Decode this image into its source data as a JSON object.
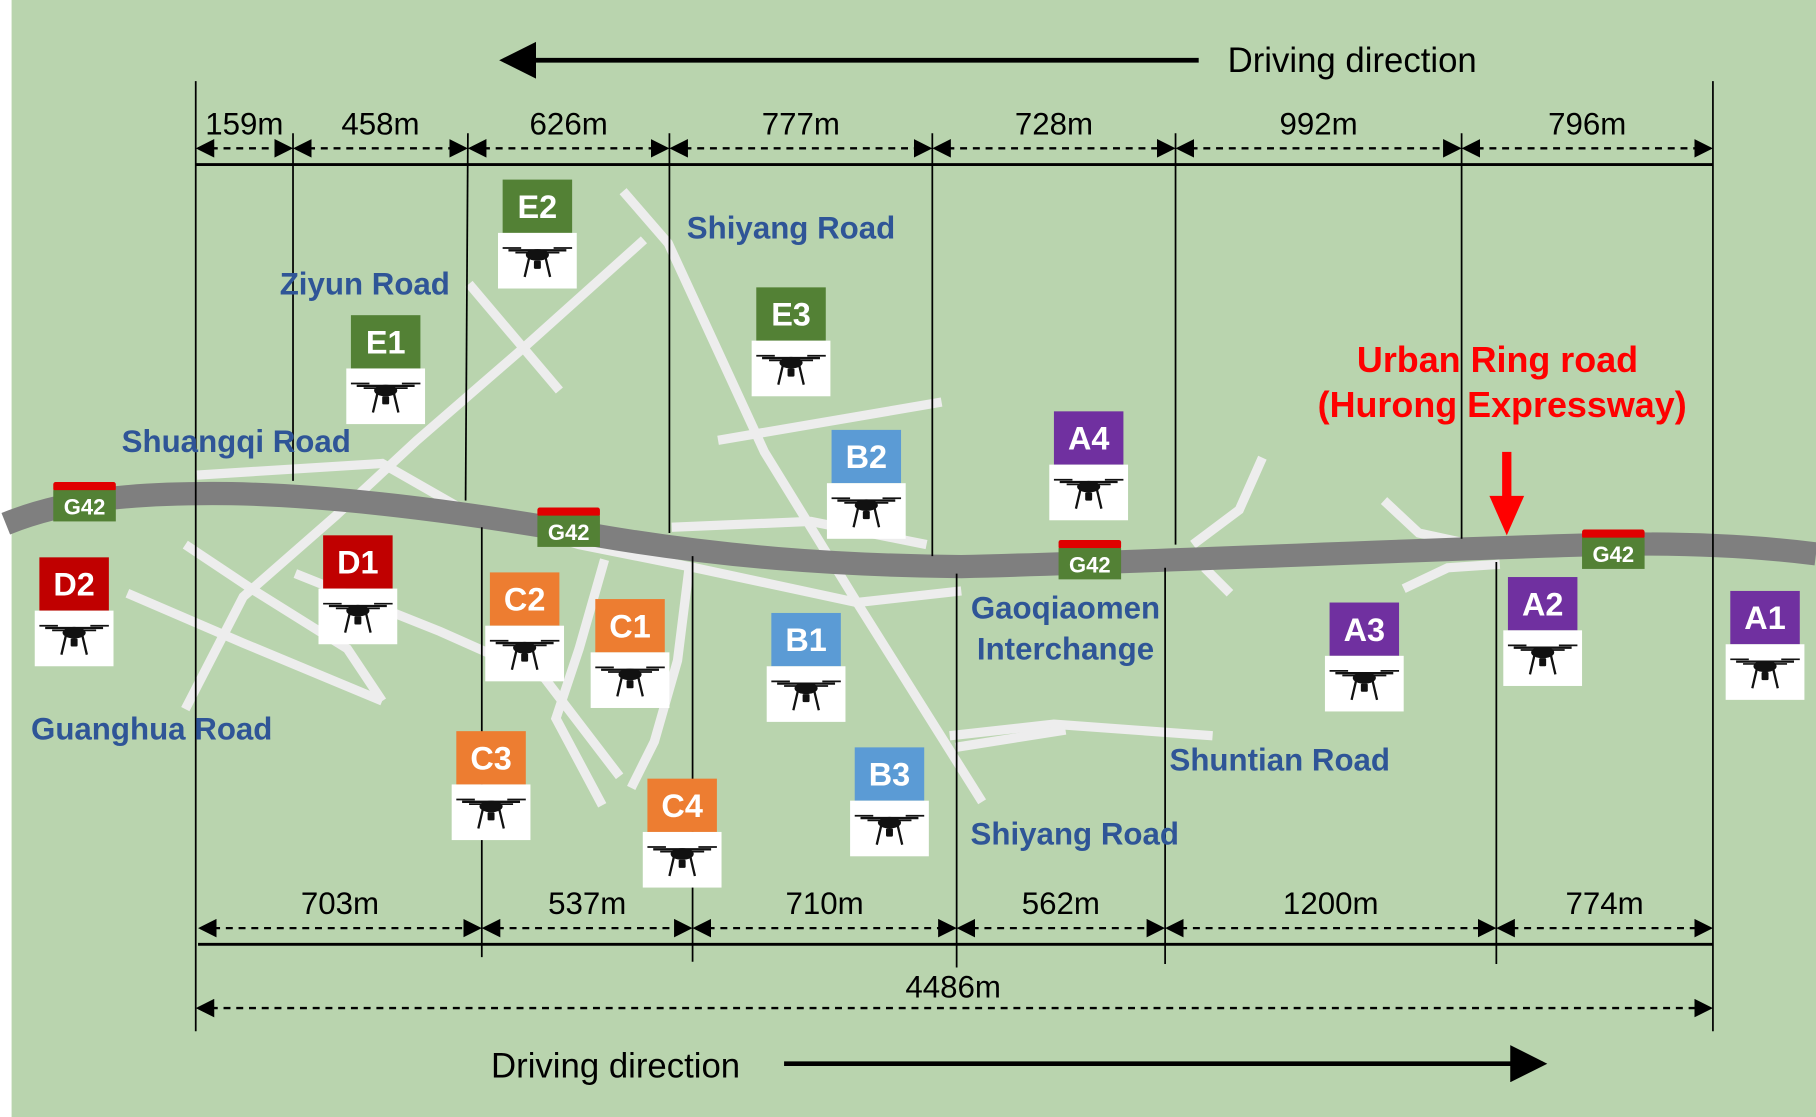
{
  "top_direction_label": "Driving direction",
  "bottom_direction_label": "Driving direction",
  "top_segments": [
    "159m",
    "458m",
    "626m",
    "777m",
    "728m",
    "992m",
    "796m"
  ],
  "bottom_segments": [
    "703m",
    "537m",
    "710m",
    "562m",
    "1200m",
    "774m"
  ],
  "total_length": "4486m",
  "highway_sign": "G42",
  "roads": {
    "ziyun": "Ziyun Road",
    "shiyang_top": "Shiyang Road",
    "shuangqi": "Shuangqi Road",
    "guanghua": "Guanghua Road",
    "gaoqiaomen_1": "Gaoqiaomen",
    "gaoqiaomen_2": "Interchange",
    "shuntian": "Shuntian Road",
    "shiyang_bottom": "Shiyang Road"
  },
  "highlight": {
    "line1": "Urban Ring road",
    "line2": "(Hurong Expressway)",
    "color": "#FF0000"
  },
  "group_colors": {
    "A": "#7030A0",
    "B": "#5B9BD5",
    "C": "#ED7D31",
    "D": "#C00000",
    "E": "#538135"
  },
  "drones": [
    {
      "id": "E2",
      "icon": "drone-icon"
    },
    {
      "id": "E1",
      "icon": "drone-icon"
    },
    {
      "id": "E3",
      "icon": "drone-icon"
    },
    {
      "id": "B2",
      "icon": "drone-icon"
    },
    {
      "id": "A4",
      "icon": "drone-icon"
    },
    {
      "id": "D1",
      "icon": "drone-icon"
    },
    {
      "id": "D2",
      "icon": "drone-icon"
    },
    {
      "id": "C2",
      "icon": "drone-icon"
    },
    {
      "id": "C1",
      "icon": "drone-icon"
    },
    {
      "id": "B1",
      "icon": "drone-icon"
    },
    {
      "id": "C3",
      "icon": "drone-icon"
    },
    {
      "id": "C4",
      "icon": "drone-icon"
    },
    {
      "id": "B3",
      "icon": "drone-icon"
    },
    {
      "id": "A3",
      "icon": "drone-icon"
    },
    {
      "id": "A2",
      "icon": "drone-icon"
    },
    {
      "id": "A1",
      "icon": "drone-icon"
    }
  ]
}
